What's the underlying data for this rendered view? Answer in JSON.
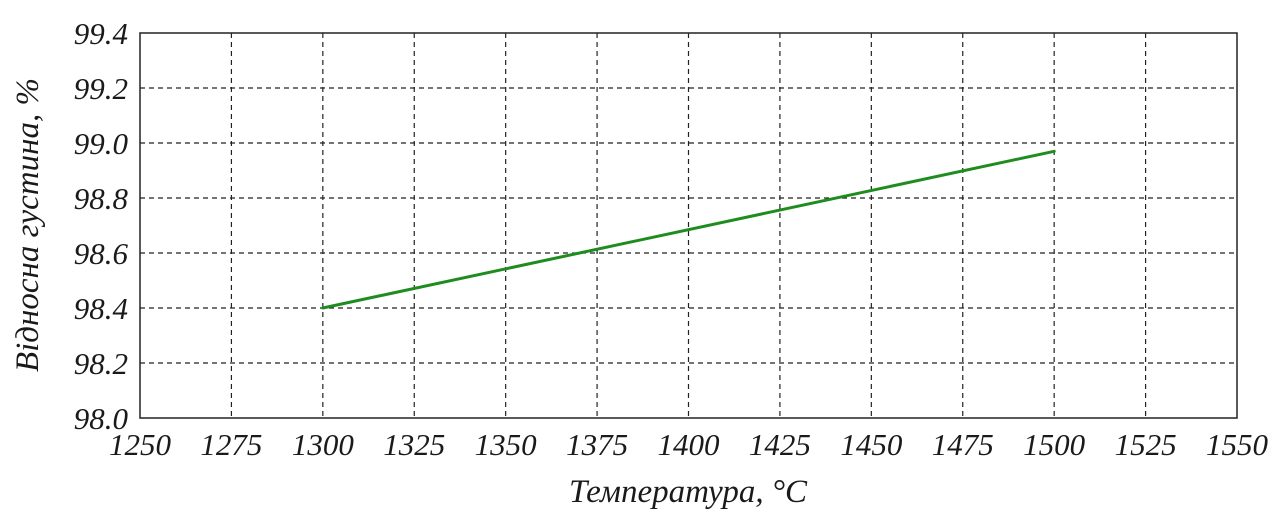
{
  "chart_data": {
    "type": "line",
    "title": "",
    "xlabel": "Температура, °C",
    "ylabel": "Відносна густина, %",
    "xlim": [
      1250,
      1550
    ],
    "ylim": [
      98.0,
      99.4
    ],
    "x_ticks": [
      "1250",
      "1275",
      "1300",
      "1325",
      "1350",
      "1375",
      "1400",
      "1425",
      "1450",
      "1475",
      "1500",
      "1525",
      "1550"
    ],
    "y_ticks": [
      "98.0",
      "98.2",
      "98.4",
      "98.6",
      "98.8",
      "99.0",
      "99.2",
      "99.4"
    ],
    "grid": true,
    "series": [
      {
        "color": "#1e8c1e",
        "x": [
          1300,
          1500
        ],
        "y": [
          98.4,
          98.97
        ]
      }
    ]
  }
}
